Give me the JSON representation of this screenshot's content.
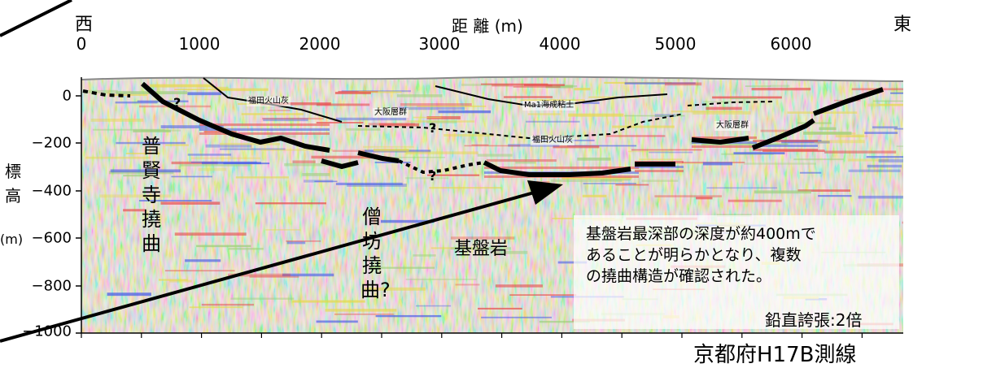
{
  "directions": {
    "west": "西",
    "east": "東"
  },
  "axis": {
    "x_title": "距 離 (m)",
    "x_ticks": [
      "0",
      "1000",
      "2000",
      "3000",
      "4000",
      "5000",
      "6000"
    ],
    "y_title": "標高",
    "y_unit": "(m)",
    "y_ticks": [
      "0",
      "−200",
      "−400",
      "−600",
      "−800",
      "−1000"
    ]
  },
  "labels": {
    "fugenji": "普賢寺撓曲",
    "soubou": "僧坊撓曲?",
    "kiban": "基盤岩",
    "fukuda_ash_1": "福田火山灰",
    "osaka_group_1": "大阪層群",
    "ma1_clay": "Ma1海成粘土",
    "fukuda_ash_2": "福田火山灰",
    "osaka_group_2": "大阪層群"
  },
  "note": "基盤岩最深部の深度が約400mで\nあることが明らかとなり、複数\nの撓曲構造が確認された。",
  "exaggeration": "鉛直誇張:2倍",
  "caption": "京都府H17B測線",
  "colors": {
    "red": "#e84a4a",
    "blue": "#4a5ee8",
    "yellow": "#e6d84a",
    "green": "#9ccf7a"
  }
}
